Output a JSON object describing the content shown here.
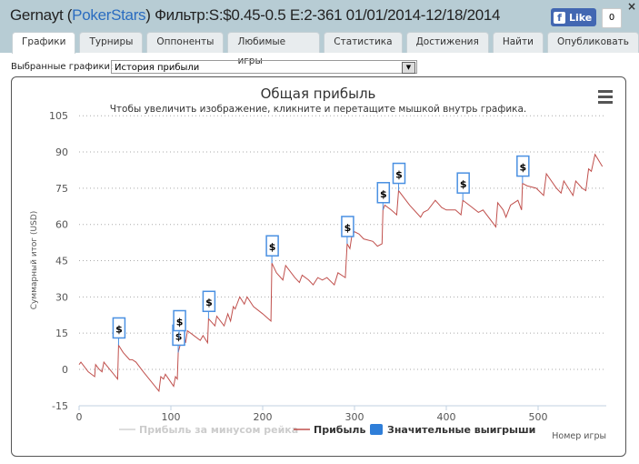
{
  "header": {
    "user": "Gernayt",
    "site": "PokerStars",
    "filter": "Фильтр:S:$0.45-0.5 E:2-361 01/01/2014-12/18/2014",
    "like_label": "Like",
    "like_count": "0",
    "close": "×"
  },
  "tabs": [
    "Графики",
    "Турниры",
    "Оппоненты",
    "Любимые игры",
    "Статистика",
    "Достижения",
    "Найти",
    "Опубликовать"
  ],
  "selector": {
    "label": "Выбранные графики:",
    "value": "История прибыли"
  },
  "colors": {
    "line": "#c0504d",
    "flag": "#4a90e2",
    "legend_marker": "#2f7ed8"
  },
  "chart_data": {
    "type": "line",
    "title": "Общая прибыль",
    "subtitle": "Чтобы увеличить изображение, кликните и перетащите мышкой внутрь графика.",
    "xlabel": "Номер игры",
    "ylabel": "Суммарный итог (USD)",
    "xlim": [
      0,
      580
    ],
    "ylim": [
      -15,
      105
    ],
    "xticks": [
      0,
      100,
      200,
      300,
      400,
      500
    ],
    "yticks": [
      -15,
      0,
      15,
      30,
      45,
      60,
      75,
      90,
      105
    ],
    "legend": [
      "Прибыль за минусом рейка",
      "Прибыль",
      "Значительные выигрыши"
    ],
    "series": [
      {
        "name": "Прибыль",
        "points": [
          [
            0,
            2
          ],
          [
            2,
            3
          ],
          [
            10,
            -1
          ],
          [
            17,
            -3
          ],
          [
            18,
            2
          ],
          [
            22,
            0
          ],
          [
            25,
            -1
          ],
          [
            27,
            3
          ],
          [
            42,
            -4
          ],
          [
            43,
            10
          ],
          [
            48,
            7
          ],
          [
            55,
            4
          ],
          [
            58,
            4
          ],
          [
            62,
            3
          ],
          [
            70,
            -1
          ],
          [
            87,
            -9
          ],
          [
            89,
            -3
          ],
          [
            92,
            -4
          ],
          [
            94,
            -2
          ],
          [
            103,
            -7
          ],
          [
            105,
            -3
          ],
          [
            107,
            -4
          ],
          [
            108,
            7
          ],
          [
            110,
            10
          ],
          [
            113,
            15
          ],
          [
            116,
            11
          ],
          [
            118,
            16
          ],
          [
            125,
            14
          ],
          [
            132,
            12
          ],
          [
            135,
            14
          ],
          [
            140,
            11
          ],
          [
            141,
            21
          ],
          [
            148,
            18
          ],
          [
            150,
            22
          ],
          [
            158,
            18
          ],
          [
            162,
            23
          ],
          [
            165,
            20
          ],
          [
            168,
            26
          ],
          [
            170,
            25
          ],
          [
            175,
            30
          ],
          [
            180,
            27
          ],
          [
            183,
            30
          ],
          [
            190,
            26
          ],
          [
            200,
            23
          ],
          [
            209,
            20
          ],
          [
            210,
            44
          ],
          [
            215,
            40
          ],
          [
            222,
            37
          ],
          [
            225,
            43
          ],
          [
            235,
            38
          ],
          [
            240,
            36
          ],
          [
            243,
            39
          ],
          [
            250,
            37
          ],
          [
            255,
            35
          ],
          [
            260,
            38
          ],
          [
            265,
            37
          ],
          [
            270,
            38
          ],
          [
            278,
            35
          ],
          [
            282,
            40
          ],
          [
            290,
            38
          ],
          [
            292,
            52
          ],
          [
            295,
            50
          ],
          [
            297,
            55
          ],
          [
            300,
            57
          ],
          [
            305,
            56
          ],
          [
            310,
            54
          ],
          [
            320,
            53
          ],
          [
            325,
            51
          ],
          [
            330,
            52
          ],
          [
            331,
            66
          ],
          [
            333,
            68
          ],
          [
            340,
            66
          ],
          [
            346,
            64
          ],
          [
            348,
            74
          ],
          [
            360,
            68
          ],
          [
            372,
            63
          ],
          [
            375,
            65
          ],
          [
            380,
            66
          ],
          [
            388,
            70
          ],
          [
            395,
            67
          ],
          [
            400,
            66
          ],
          [
            410,
            66
          ],
          [
            416,
            64
          ],
          [
            418,
            70
          ],
          [
            425,
            68
          ],
          [
            435,
            65
          ],
          [
            440,
            66
          ],
          [
            454,
            59
          ],
          [
            456,
            69
          ],
          [
            462,
            66
          ],
          [
            465,
            63
          ],
          [
            470,
            68
          ],
          [
            478,
            70
          ],
          [
            482,
            66
          ],
          [
            483,
            77
          ],
          [
            488,
            76
          ],
          [
            498,
            75
          ],
          [
            506,
            72
          ],
          [
            509,
            81
          ],
          [
            520,
            75
          ],
          [
            525,
            73
          ],
          [
            528,
            78
          ],
          [
            538,
            72
          ],
          [
            541,
            78
          ],
          [
            548,
            75
          ],
          [
            552,
            74
          ],
          [
            555,
            83
          ],
          [
            558,
            82
          ],
          [
            562,
            89
          ],
          [
            570,
            84
          ]
        ]
      }
    ],
    "flags": [
      {
        "x": 43,
        "y": 10,
        "label": "$"
      },
      {
        "x": 108,
        "y": 7,
        "label": "$"
      },
      {
        "x": 109,
        "y": 13,
        "label": "$"
      },
      {
        "x": 141,
        "y": 21,
        "label": "$"
      },
      {
        "x": 210,
        "y": 44,
        "label": "$"
      },
      {
        "x": 292,
        "y": 52,
        "label": "$"
      },
      {
        "x": 331,
        "y": 66,
        "label": "$"
      },
      {
        "x": 348,
        "y": 74,
        "label": "$"
      },
      {
        "x": 418,
        "y": 70,
        "label": "$"
      },
      {
        "x": 483,
        "y": 77,
        "label": "$"
      }
    ]
  }
}
